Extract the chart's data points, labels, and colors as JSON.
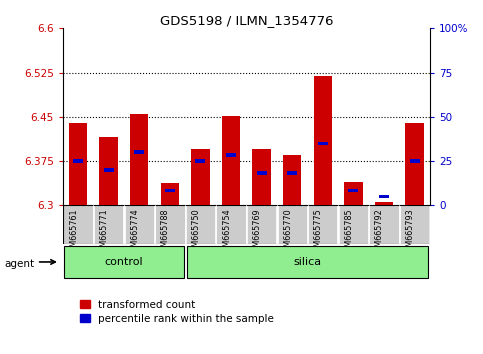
{
  "title": "GDS5198 / ILMN_1354776",
  "samples": [
    "GSM665761",
    "GSM665771",
    "GSM665774",
    "GSM665788",
    "GSM665750",
    "GSM665754",
    "GSM665769",
    "GSM665770",
    "GSM665775",
    "GSM665785",
    "GSM665792",
    "GSM665793"
  ],
  "groups": [
    "control",
    "control",
    "control",
    "control",
    "silica",
    "silica",
    "silica",
    "silica",
    "silica",
    "silica",
    "silica",
    "silica"
  ],
  "transformed_count": [
    6.44,
    6.415,
    6.455,
    6.338,
    6.395,
    6.452,
    6.395,
    6.385,
    6.52,
    6.34,
    6.305,
    6.44
  ],
  "percentile_rank": [
    6.375,
    6.36,
    6.39,
    6.325,
    6.375,
    6.385,
    6.355,
    6.355,
    6.405,
    6.325,
    6.315,
    6.375
  ],
  "ylim": [
    6.3,
    6.6
  ],
  "yticks": [
    6.3,
    6.375,
    6.45,
    6.525,
    6.6
  ],
  "y2ticks": [
    0,
    25,
    50,
    75,
    100
  ],
  "y2labels": [
    "0",
    "25",
    "50",
    "75",
    "100%"
  ],
  "dotted_lines": [
    6.375,
    6.45,
    6.525
  ],
  "bar_color": "#cc0000",
  "dot_color": "#0000cc",
  "bar_base": 6.3,
  "bar_width": 0.6,
  "group_color": "#90ee90",
  "left_axis_color": "#cc0000",
  "right_axis_color": "#0000cc",
  "agent_label": "agent",
  "background_color": "#ffffff",
  "plot_bg_color": "#ffffff",
  "label_bg_color": "#cccccc",
  "control_count": 4,
  "silica_count": 8
}
